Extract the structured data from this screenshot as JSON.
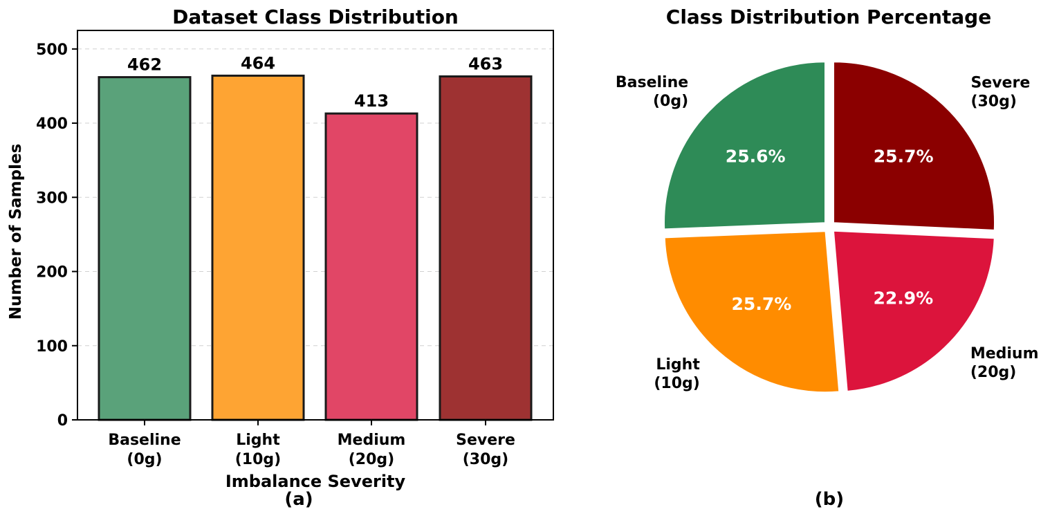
{
  "chart_data": [
    {
      "type": "bar",
      "title": "Dataset Class Distribution",
      "xlabel": "Imbalance Severity",
      "ylabel": "Number of Samples",
      "panel_label": "(a)",
      "categories": [
        "Baseline\n(0g)",
        "Light\n(10g)",
        "Medium\n(20g)",
        "Severe\n(30g)"
      ],
      "values": [
        462,
        464,
        413,
        463
      ],
      "data_labels": [
        "462",
        "464",
        "413",
        "463"
      ],
      "colors": [
        "#5aa27a",
        "#fea433",
        "#e14666",
        "#9e3232"
      ],
      "ylim": [
        0,
        525
      ],
      "yticks": [
        0,
        100,
        200,
        300,
        400,
        500
      ],
      "grid": "y-dashed",
      "legend": "none"
    },
    {
      "type": "pie",
      "title": "Class Distribution Percentage",
      "panel_label": "(b)",
      "labels": [
        "Baseline\n(0g)",
        "Light\n(10g)",
        "Medium\n(20g)",
        "Severe\n(30g)"
      ],
      "values": [
        25.6,
        25.7,
        22.9,
        25.7
      ],
      "pct_labels": [
        "25.6%",
        "25.7%",
        "22.9%",
        "25.7%"
      ],
      "colors": [
        "#2e8b57",
        "#ff8c00",
        "#dc143c",
        "#8b0000"
      ],
      "start_angle_deg": 90,
      "direction": "counterclockwise",
      "exploded": true,
      "legend": "none"
    }
  ]
}
